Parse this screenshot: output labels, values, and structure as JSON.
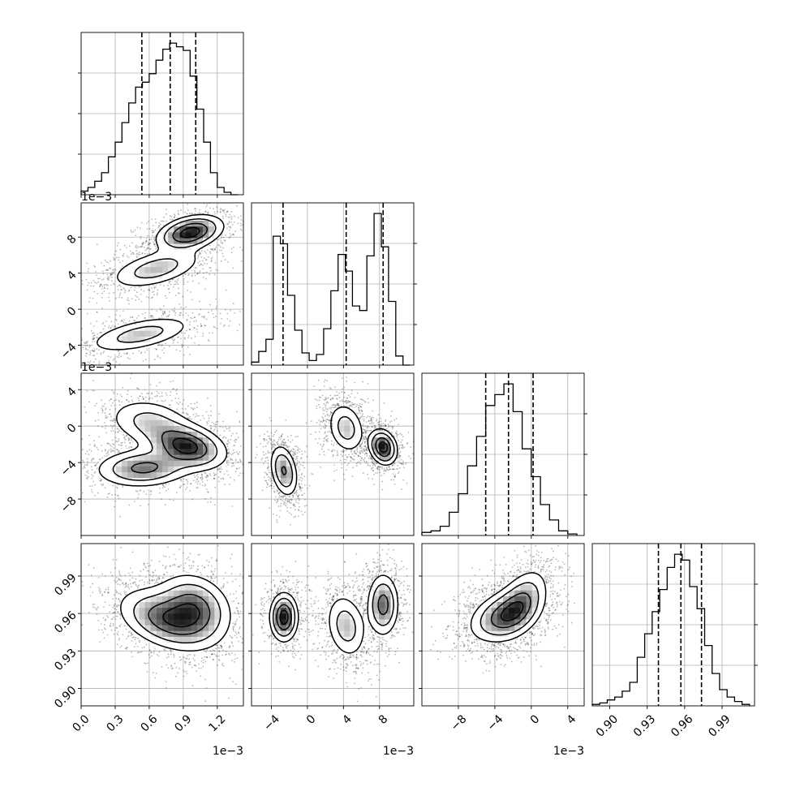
{
  "chart_data": {
    "type": "corner",
    "title": "",
    "n_params": 4,
    "grid": true,
    "params": [
      {
        "label": "",
        "range": [
          0.0,
          1.43
        ],
        "ticks": [
          0.0,
          0.3,
          0.6,
          0.9,
          1.2
        ],
        "tick_labels": [
          "0.0",
          "0.3",
          "0.6",
          "0.9",
          "1.2"
        ],
        "offset_text": "1e−3",
        "quantiles": [
          0.535,
          0.785,
          1.01
        ]
      },
      {
        "label": "",
        "range": [
          -6.2,
          11.8
        ],
        "ticks": [
          -4,
          0,
          4,
          8
        ],
        "tick_labels": [
          "−4",
          "0",
          "4",
          "8"
        ],
        "offset_text": "1e−3",
        "quantiles": [
          -2.7,
          4.3,
          8.4
        ]
      },
      {
        "label": "",
        "range": [
          -12.0,
          5.8
        ],
        "ticks": [
          -8,
          -4,
          0,
          4
        ],
        "tick_labels": [
          "−8",
          "−4",
          "0",
          "4"
        ],
        "offset_text": "1e−3",
        "quantiles": [
          -5.0,
          -2.5,
          0.2
        ]
      },
      {
        "label": "",
        "range": [
          0.886,
          1.016
        ],
        "ticks": [
          0.9,
          0.93,
          0.96,
          0.99
        ],
        "tick_labels": [
          "0.90",
          "0.93",
          "0.96",
          "0.99"
        ],
        "offset_text": "",
        "quantiles": [
          0.939,
          0.957,
          0.9735
        ]
      }
    ],
    "histograms": [
      {
        "param": 0,
        "bin_edges": [
          0.0,
          0.06,
          0.12,
          0.18,
          0.24,
          0.3,
          0.36,
          0.42,
          0.48,
          0.54,
          0.6,
          0.66,
          0.72,
          0.78,
          0.84,
          0.9,
          0.96,
          1.02,
          1.08,
          1.14,
          1.2,
          1.26,
          1.32,
          1.38
        ],
        "counts": [
          3,
          6,
          11,
          18,
          31,
          43,
          59,
          75,
          88,
          92,
          99,
          110,
          119,
          124,
          121,
          118,
          97,
          70,
          43,
          18,
          6,
          2,
          0
        ]
      },
      {
        "param": 1,
        "bin_edges": [
          -6.2,
          -5.4,
          -4.6,
          -3.8,
          -3.0,
          -2.2,
          -1.4,
          -0.6,
          0.2,
          1.0,
          1.8,
          2.6,
          3.4,
          4.2,
          5.0,
          5.8,
          6.6,
          7.4,
          8.2,
          9.0,
          9.8,
          10.6,
          11.4
        ],
        "counts": [
          2,
          9,
          17,
          85,
          80,
          46,
          23,
          8,
          3,
          7,
          24,
          49,
          73,
          62,
          39,
          36,
          72,
          100,
          78,
          42,
          6,
          0
        ]
      },
      {
        "param": 2,
        "bin_edges": [
          -12.0,
          -11.0,
          -10.0,
          -9.0,
          -8.0,
          -7.0,
          -6.0,
          -5.0,
          -4.0,
          -3.0,
          -2.0,
          -1.0,
          0.0,
          1.0,
          2.0,
          3.0,
          4.0,
          5.0
        ],
        "counts": [
          2,
          3,
          6,
          15,
          27,
          45,
          64,
          84,
          91,
          98,
          80,
          56,
          38,
          20,
          10,
          3,
          1
        ]
      },
      {
        "param": 3,
        "bin_edges": [
          0.886,
          0.892,
          0.898,
          0.904,
          0.91,
          0.916,
          0.922,
          0.928,
          0.934,
          0.94,
          0.946,
          0.952,
          0.958,
          0.964,
          0.97,
          0.976,
          0.982,
          0.988,
          0.994,
          1.0,
          1.006,
          1.012
        ],
        "counts": [
          1,
          2,
          4,
          6,
          10,
          16,
          33,
          49,
          64,
          79,
          94,
          103,
          99,
          81,
          66,
          41,
          22,
          11,
          6,
          3,
          1
        ]
      }
    ],
    "pairs": [
      {
        "x_param": 0,
        "y_param": 1,
        "modes": [
          {
            "x": 0.96,
            "y": 8.5,
            "sx": 0.15,
            "sy": 1.0,
            "rho": 0.35,
            "w": 0.38
          },
          {
            "x": 0.66,
            "y": 4.5,
            "sx": 0.22,
            "sy": 1.2,
            "rho": 0.5,
            "w": 0.31
          },
          {
            "x": 0.52,
            "y": -2.8,
            "sx": 0.25,
            "sy": 1.1,
            "rho": 0.55,
            "w": 0.31
          }
        ]
      },
      {
        "x_param": 0,
        "y_param": 2,
        "modes": [
          {
            "x": 0.93,
            "y": -2.2,
            "sx": 0.18,
            "sy": 1.3,
            "rho": -0.3,
            "w": 0.45
          },
          {
            "x": 0.6,
            "y": 0.5,
            "sx": 0.2,
            "sy": 1.4,
            "rho": -0.2,
            "w": 0.22
          },
          {
            "x": 0.55,
            "y": -4.6,
            "sx": 0.22,
            "sy": 1.1,
            "rho": 0.1,
            "w": 0.33
          }
        ]
      },
      {
        "x_param": 1,
        "y_param": 2,
        "modes": [
          {
            "x": -2.6,
            "y": -4.9,
            "sx": 0.8,
            "sy": 1.5,
            "rho": -0.3,
            "w": 0.33
          },
          {
            "x": 4.3,
            "y": -0.2,
            "sx": 1.1,
            "sy": 1.5,
            "rho": -0.2,
            "w": 0.32
          },
          {
            "x": 8.4,
            "y": -2.3,
            "sx": 0.8,
            "sy": 1.0,
            "rho": -0.2,
            "w": 0.35
          }
        ]
      },
      {
        "x_param": 0,
        "y_param": 3,
        "modes": [
          {
            "x": 0.75,
            "y": 0.955,
            "sx": 0.22,
            "sy": 0.013,
            "rho": -0.4,
            "w": 0.55
          },
          {
            "x": 1.0,
            "y": 0.965,
            "sx": 0.17,
            "sy": 0.014,
            "rho": -0.2,
            "w": 0.45
          }
        ]
      },
      {
        "x_param": 1,
        "y_param": 3,
        "modes": [
          {
            "x": -2.6,
            "y": 0.957,
            "sx": 0.8,
            "sy": 0.01,
            "rho": 0.0,
            "w": 0.33
          },
          {
            "x": 4.3,
            "y": 0.95,
            "sx": 1.2,
            "sy": 0.014,
            "rho": -0.2,
            "w": 0.32
          },
          {
            "x": 8.4,
            "y": 0.967,
            "sx": 0.9,
            "sy": 0.013,
            "rho": 0.0,
            "w": 0.35
          }
        ]
      },
      {
        "x_param": 2,
        "y_param": 3,
        "modes": [
          {
            "x": -3.0,
            "y": 0.958,
            "sx": 2.0,
            "sy": 0.011,
            "rho": 0.35,
            "w": 0.6
          },
          {
            "x": -1.0,
            "y": 0.97,
            "sx": 1.5,
            "sy": 0.014,
            "rho": 0.45,
            "w": 0.4
          }
        ]
      }
    ]
  }
}
